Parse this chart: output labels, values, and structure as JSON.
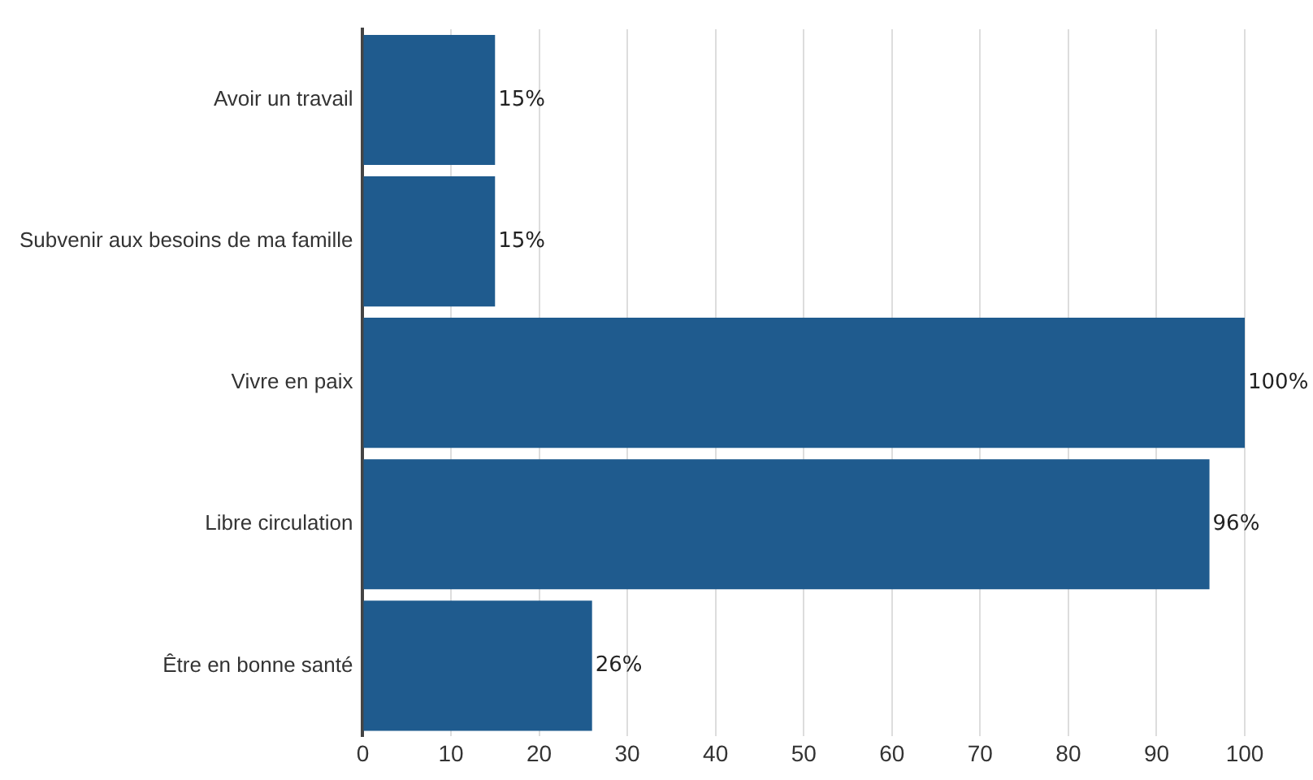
{
  "chart_data": {
    "type": "bar",
    "orientation": "horizontal",
    "categories": [
      "Avoir un travail",
      "Subvenir aux besoins de ma famille",
      "Vivre en paix",
      "Libre circulation",
      "Être en bonne santé"
    ],
    "values": [
      15,
      15,
      100,
      96,
      26
    ],
    "value_labels": [
      "15%",
      "15%",
      "100%",
      "96%",
      "26%"
    ],
    "color": "#1f5b8e",
    "xlim": [
      0,
      100
    ],
    "xticks": [
      0,
      10,
      20,
      30,
      40,
      50,
      60,
      70,
      80,
      90,
      100
    ],
    "grid": "x"
  }
}
